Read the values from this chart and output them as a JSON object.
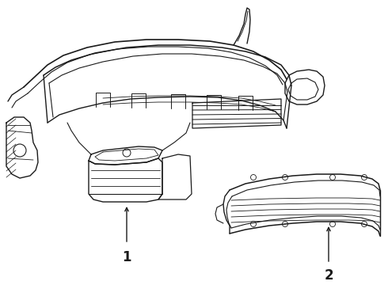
{
  "bg_color": "#ffffff",
  "line_color": "#1a1a1a",
  "label1": "1",
  "label2": "2",
  "figw": 4.9,
  "figh": 3.6,
  "dpi": 100
}
